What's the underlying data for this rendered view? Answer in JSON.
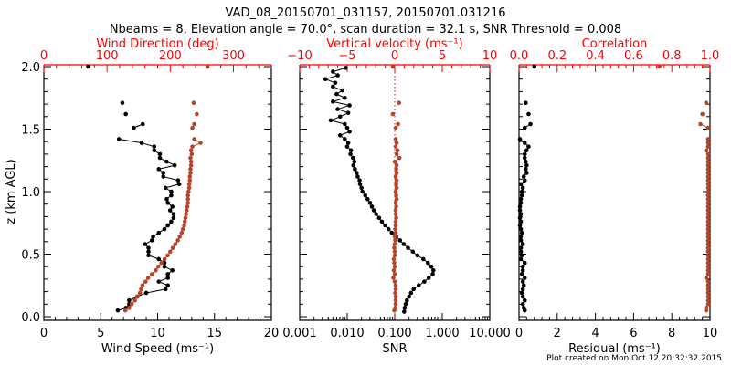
{
  "chart_data": {
    "type": "scatter",
    "title": "VAD_08_20150701_031157, 20150701.031216",
    "subtitle": "Nbeams = 8, Elevation angle = 70.0°, scan duration = 32.1 s, SNR Threshold = 0.008",
    "ylabel": "z (km AGL)",
    "ylim": [
      0,
      2
    ],
    "yticks": [
      0,
      0.5,
      1.0,
      1.5,
      2.0
    ],
    "ytick_labels": [
      "0.0",
      "0.5",
      "1.0",
      "1.5",
      "2.0"
    ],
    "footer": "Plot created on Mon Oct 12 20:32:32 2015",
    "heights": [
      2.0,
      1.71,
      1.62,
      1.54,
      1.51,
      1.42,
      1.39,
      1.36,
      1.33,
      1.3,
      1.27,
      1.24,
      1.21,
      1.18,
      1.15,
      1.12,
      1.09,
      1.06,
      1.03,
      1.0,
      0.97,
      0.94,
      0.91,
      0.88,
      0.85,
      0.82,
      0.79,
      0.76,
      0.73,
      0.7,
      0.67,
      0.64,
      0.61,
      0.58,
      0.55,
      0.52,
      0.49,
      0.46,
      0.43,
      0.4,
      0.37,
      0.34,
      0.31,
      0.28,
      0.25,
      0.22,
      0.19,
      0.16,
      0.13,
      0.1,
      0.07,
      0.05
    ],
    "snr_heights": [
      1.99,
      1.96,
      1.93,
      1.9,
      1.87,
      1.84,
      1.81,
      1.78,
      1.75,
      1.72,
      1.69,
      1.66,
      1.63,
      1.6,
      1.57,
      1.54,
      1.51,
      1.48,
      1.45,
      1.42,
      1.39,
      1.36,
      1.33,
      1.3,
      1.27,
      1.24,
      1.21,
      1.18,
      1.15,
      1.12,
      1.09,
      1.06,
      1.03,
      1.0,
      0.97,
      0.94,
      0.91,
      0.88,
      0.85,
      0.82,
      0.79,
      0.76,
      0.73,
      0.7,
      0.67,
      0.64,
      0.61,
      0.58,
      0.55,
      0.52,
      0.49,
      0.46,
      0.43,
      0.4,
      0.37,
      0.34,
      0.31,
      0.28,
      0.25,
      0.22,
      0.19,
      0.16,
      0.13,
      0.1,
      0.07,
      0.04
    ],
    "panels": [
      {
        "xlabel": "Wind Speed (ms⁻¹)",
        "xlim": [
          0,
          20
        ],
        "xscale": "linear",
        "xticks": [
          0,
          5,
          10,
          15,
          20
        ],
        "xtick_labels": [
          "0",
          "5",
          "10",
          "15",
          "20"
        ],
        "top_xlabel": "Wind Direction (deg)",
        "top_xlim": [
          0,
          360
        ],
        "top_xticks": [
          0,
          100,
          200,
          300
        ],
        "top_xtick_labels": [
          "0",
          "100",
          "200",
          "300"
        ],
        "series": [
          {
            "name": "Wind Speed",
            "axis": "bottom",
            "color": "#000000",
            "heights_key": "heights",
            "values": [
              3.9,
              6.9,
              7.2,
              8.7,
              7.9,
              6.6,
              8.6,
              9.7,
              9.7,
              10.2,
              10.2,
              10.8,
              11.5,
              10.1,
              10.5,
              10.5,
              11.8,
              11.9,
              10.7,
              11.2,
              11.2,
              10.8,
              10.9,
              11.3,
              11.1,
              11.4,
              11.4,
              11.2,
              10.9,
              10.6,
              10.1,
              9.6,
              9.5,
              8.9,
              9.2,
              9.2,
              9.2,
              10.1,
              10.6,
              10.6,
              11.3,
              10.9,
              10.9,
              10.1,
              10.9,
              10.7,
              9.0,
              8.2,
              7.5,
              7.5,
              7.2,
              6.5
            ]
          },
          {
            "name": "Wind Direction",
            "axis": "top",
            "color": "#b5452a",
            "heights_key": "heights",
            "values": [
              259,
              237,
              242,
              238,
              235,
              238,
              248,
              235,
              233,
              234,
              232,
              233,
              233,
              232,
              232,
              231,
              231,
              230,
              230,
              229,
              228,
              228,
              228,
              227,
              226,
              225,
              224,
              223,
              222,
              220,
              218,
              215,
              212,
              208,
              204,
              200,
              196,
              191,
              186,
              181,
              177,
              171,
              165,
              161,
              156,
              154,
              152,
              148,
              144,
              139,
              135,
              129
            ]
          }
        ]
      },
      {
        "xlabel": "SNR",
        "xlim": [
          0.001,
          10
        ],
        "xscale": "log",
        "xticks": [
          0.001,
          0.01,
          0.1,
          1,
          10
        ],
        "xtick_labels": [
          "0.001",
          "0.010",
          "0.100",
          "1.000",
          "10.000"
        ],
        "top_xlabel": "Vertical velocity (ms⁻¹)",
        "top_xlim": [
          -10,
          10
        ],
        "top_xticks": [
          -10,
          -5,
          0,
          5,
          10
        ],
        "top_xtick_labels": [
          "−10",
          "−5",
          "0",
          "5",
          "10"
        ],
        "zero_line": 0,
        "series": [
          {
            "name": "SNR",
            "axis": "bottom",
            "color": "#000000",
            "heights_key": "snr_heights",
            "values": [
              0.0093,
              0.005,
              0.0063,
              0.0035,
              0.0056,
              0.005,
              0.0079,
              0.006,
              0.0089,
              0.005,
              0.0112,
              0.0063,
              0.0105,
              0.0071,
              0.0045,
              0.0089,
              0.01,
              0.0112,
              0.0071,
              0.0089,
              0.0105,
              0.01,
              0.012,
              0.0117,
              0.0132,
              0.0141,
              0.0135,
              0.0145,
              0.0158,
              0.0166,
              0.0182,
              0.0186,
              0.02,
              0.0209,
              0.024,
              0.0269,
              0.0302,
              0.0331,
              0.0363,
              0.0407,
              0.0468,
              0.0537,
              0.063,
              0.0741,
              0.087,
              0.107,
              0.129,
              0.155,
              0.19,
              0.24,
              0.3,
              0.4,
              0.5,
              0.59,
              0.65,
              0.63,
              0.52,
              0.42,
              0.32,
              0.25,
              0.22,
              0.2,
              0.18,
              0.17,
              0.162,
              0.158
            ]
          },
          {
            "name": "Vertical velocity",
            "axis": "top",
            "color": "#b5452a",
            "heights_key": "heights",
            "values": [
              -0.2,
              0.45,
              -0.2,
              0.35,
              0.1,
              0.1,
              0.2,
              0.1,
              0.3,
              0.2,
              0.5,
              0.0,
              0.2,
              0.15,
              0.2,
              0.1,
              0.2,
              0.15,
              0.2,
              0.1,
              0.15,
              0.2,
              0.1,
              0.15,
              0.1,
              0.1,
              0.15,
              0.1,
              0.1,
              0.05,
              0.1,
              0.0,
              0.05,
              0.0,
              -0.05,
              0.0,
              0.0,
              -0.1,
              -0.05,
              0.0,
              -0.1,
              0.0,
              -0.15,
              0.0,
              0.1,
              0.1,
              0.05,
              0.1,
              0.1,
              0.1,
              0.05,
              -0.05
            ]
          }
        ]
      },
      {
        "xlabel": "Residual (ms⁻¹)",
        "xlim": [
          0,
          10
        ],
        "xscale": "linear",
        "xticks": [
          0,
          2,
          4,
          6,
          8,
          10
        ],
        "xtick_labels": [
          "0",
          "2",
          "4",
          "6",
          "8",
          "10"
        ],
        "top_xlabel": "Correlation",
        "top_xlim": [
          0,
          1
        ],
        "top_xticks": [
          0,
          0.2,
          0.4,
          0.6,
          0.8,
          1.0
        ],
        "top_xtick_labels": [
          "0.0",
          "0.2",
          "0.4",
          "0.6",
          "0.8",
          "1.0"
        ],
        "series": [
          {
            "name": "Residual",
            "axis": "bottom",
            "color": "#000000",
            "heights_key": "heights",
            "values": [
              0.8,
              0.35,
              0.5,
              0.6,
              0.3,
              0.05,
              0.3,
              0.5,
              0.4,
              0.3,
              0.3,
              0.35,
              0.4,
              0.35,
              0.4,
              0.25,
              0.3,
              0.1,
              0.2,
              0.15,
              0.15,
              0.1,
              0.1,
              0.05,
              0.05,
              0.1,
              0.05,
              0.1,
              0.05,
              0.1,
              0.15,
              0.1,
              0.1,
              0.2,
              0.1,
              0.1,
              0.15,
              0.1,
              0.3,
              0.2,
              0.2,
              0.15,
              0.3,
              0.2,
              0.25,
              0.2,
              0.15,
              0.2,
              0.3,
              0.2,
              0.25,
              0.3
            ]
          },
          {
            "name": "Correlation",
            "axis": "top",
            "color": "#b5452a",
            "heights_key": "heights",
            "values": [
              0.735,
              0.98,
              0.96,
              0.95,
              0.99,
              0.99,
              0.99,
              0.99,
              0.98,
              0.99,
              0.99,
              0.99,
              0.99,
              0.99,
              0.99,
              0.99,
              0.99,
              0.99,
              0.99,
              0.99,
              0.99,
              0.99,
              0.99,
              0.99,
              0.99,
              0.99,
              0.99,
              0.99,
              0.99,
              0.99,
              0.99,
              0.99,
              0.99,
              0.99,
              0.99,
              0.99,
              0.99,
              0.99,
              0.99,
              0.99,
              0.99,
              0.99,
              0.98,
              0.99,
              0.99,
              0.99,
              0.99,
              0.99,
              0.99,
              0.99,
              0.98,
              0.98
            ]
          }
        ]
      }
    ]
  }
}
